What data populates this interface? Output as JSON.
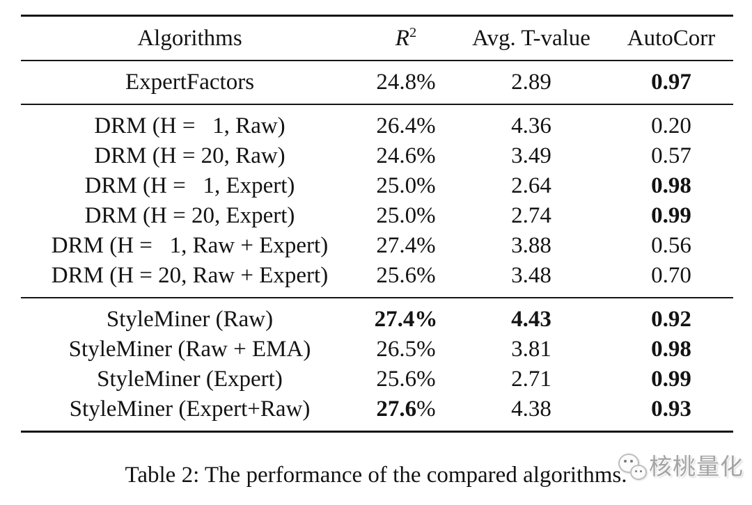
{
  "page": {
    "background": "#ffffff",
    "text_color": "#131313",
    "rule_color": "#141414"
  },
  "table": {
    "columns": [
      {
        "name": "algorithms",
        "segments": [
          {
            "t": "Algorithms"
          }
        ]
      },
      {
        "name": "r-squared",
        "segments": [
          {
            "t": "R",
            "i": true
          },
          {
            "t": "2",
            "sup": true
          }
        ]
      },
      {
        "name": "avg-t-value",
        "segments": [
          {
            "t": "Avg. T-value"
          }
        ]
      },
      {
        "name": "autocorr",
        "segments": [
          {
            "t": "AutoCorr"
          }
        ]
      }
    ],
    "sections": [
      {
        "name": "baseline",
        "rows": [
          [
            [
              {
                "t": "ExpertFactors"
              }
            ],
            [
              {
                "t": "24.8%"
              }
            ],
            [
              {
                "t": "2.89"
              }
            ],
            [
              {
                "t": "0.97",
                "b": true
              }
            ]
          ]
        ]
      },
      {
        "name": "drm",
        "rows": [
          [
            [
              {
                "t": "DRM (H =  1, Raw)"
              }
            ],
            [
              {
                "t": "26.4%"
              }
            ],
            [
              {
                "t": "4.36"
              }
            ],
            [
              {
                "t": "0.20"
              }
            ]
          ],
          [
            [
              {
                "t": "DRM (H = 20, Raw)"
              }
            ],
            [
              {
                "t": "24.6%"
              }
            ],
            [
              {
                "t": "3.49"
              }
            ],
            [
              {
                "t": "0.57"
              }
            ]
          ],
          [
            [
              {
                "t": "DRM (H =  1, Expert)"
              }
            ],
            [
              {
                "t": "25.0%"
              }
            ],
            [
              {
                "t": "2.64"
              }
            ],
            [
              {
                "t": "0.98",
                "b": true
              }
            ]
          ],
          [
            [
              {
                "t": "DRM (H = 20, Expert)"
              }
            ],
            [
              {
                "t": "25.0%"
              }
            ],
            [
              {
                "t": "2.74"
              }
            ],
            [
              {
                "t": "0.99",
                "b": true
              }
            ]
          ],
          [
            [
              {
                "t": "DRM (H =  1, Raw + Expert)"
              }
            ],
            [
              {
                "t": "27.4%"
              }
            ],
            [
              {
                "t": "3.88"
              }
            ],
            [
              {
                "t": "0.56"
              }
            ]
          ],
          [
            [
              {
                "t": "DRM (H = 20, Raw + Expert)"
              }
            ],
            [
              {
                "t": "25.6%"
              }
            ],
            [
              {
                "t": "3.48"
              }
            ],
            [
              {
                "t": "0.70"
              }
            ]
          ]
        ]
      },
      {
        "name": "styleminer",
        "rows": [
          [
            [
              {
                "t": "StyleMiner (Raw)"
              }
            ],
            [
              {
                "t": "27.4%",
                "b": true
              }
            ],
            [
              {
                "t": "4.43",
                "b": true
              }
            ],
            [
              {
                "t": "0.92",
                "b": true
              }
            ]
          ],
          [
            [
              {
                "t": "StyleMiner (Raw + EMA)"
              }
            ],
            [
              {
                "t": "26.5%"
              }
            ],
            [
              {
                "t": "3.81"
              }
            ],
            [
              {
                "t": "0.98",
                "b": true
              }
            ]
          ],
          [
            [
              {
                "t": "StyleMiner (Expert)"
              }
            ],
            [
              {
                "t": "25.6%"
              }
            ],
            [
              {
                "t": "2.71"
              }
            ],
            [
              {
                "t": "0.99",
                "b": true
              }
            ]
          ],
          [
            [
              {
                "t": "StyleMiner (Expert+Raw)"
              }
            ],
            [
              {
                "t": "27.6",
                "b": true
              },
              {
                "t": "%"
              }
            ],
            [
              {
                "t": "4.38"
              }
            ],
            [
              {
                "t": "0.93",
                "b": true
              }
            ]
          ]
        ]
      }
    ]
  },
  "caption": "Table 2: The performance of the compared algorithms.",
  "watermark": {
    "logo": "wechat-logo",
    "text": "核桃量化"
  }
}
